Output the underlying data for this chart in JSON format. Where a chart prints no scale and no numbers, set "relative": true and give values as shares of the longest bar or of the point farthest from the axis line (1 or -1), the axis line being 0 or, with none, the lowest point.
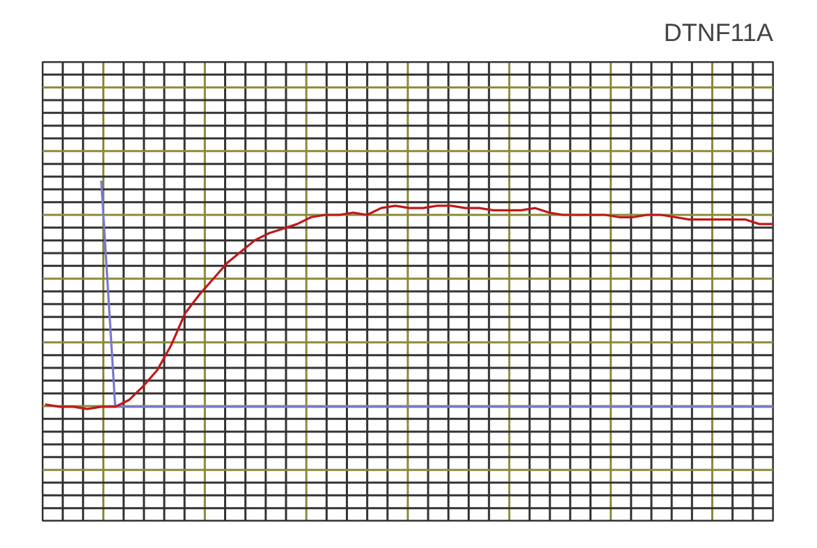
{
  "chart_data": {
    "type": "line",
    "title": "DTNF11A",
    "relative": true,
    "grid": true,
    "categories": [
      null,
      null,
      null,
      null,
      null,
      null,
      null,
      null,
      null,
      null,
      null,
      null,
      null,
      null,
      null,
      null,
      null,
      null,
      null,
      null,
      null,
      null,
      null,
      null,
      null,
      null,
      null,
      null,
      null,
      null,
      null,
      null,
      null,
      null,
      null,
      null,
      null,
      null,
      null,
      null,
      null,
      null,
      null,
      null,
      null,
      null,
      null,
      null,
      null,
      null,
      null,
      null,
      null
    ],
    "series": [
      {
        "color": "#c01818",
        "values": [
          0.02,
          0.01,
          0.01,
          0,
          0.01,
          0.01,
          0.04,
          0.1,
          0.17,
          0.28,
          0.42,
          0.5,
          0.57,
          0.64,
          0.69,
          0.74,
          0.77,
          0.79,
          0.81,
          0.84,
          0.85,
          0.85,
          0.86,
          0.85,
          0.88,
          0.89,
          0.88,
          0.88,
          0.89,
          0.89,
          0.88,
          0.88,
          0.87,
          0.87,
          0.87,
          0.88,
          0.86,
          0.85,
          0.85,
          0.85,
          0.85,
          0.84,
          0.84,
          0.85,
          0.85,
          0.84,
          0.83,
          0.83,
          0.83,
          0.83,
          0.83,
          0.81,
          0.81
        ]
      },
      {
        "color": "#7878d0",
        "values": [
          null,
          null,
          null,
          null,
          1,
          0.01,
          0.01,
          0.01,
          0.01,
          0.01,
          0.01,
          0.01,
          0.01,
          0.01,
          0.01,
          0.01,
          0.01,
          0.01,
          0.01,
          0.01,
          0.01,
          0.01,
          0.01,
          0.01,
          0.01,
          0.01,
          0.01,
          0.01,
          0.01,
          0.01,
          0.01,
          0.01,
          0.01,
          0.01,
          0.01,
          0.01,
          0.01,
          0.01,
          0.01,
          0.01,
          0.01,
          0.01,
          0.01,
          0.01,
          0.01,
          0.01,
          0.01,
          0.01,
          0.01,
          0.01,
          0.01,
          0.01,
          0.01
        ]
      }
    ]
  }
}
